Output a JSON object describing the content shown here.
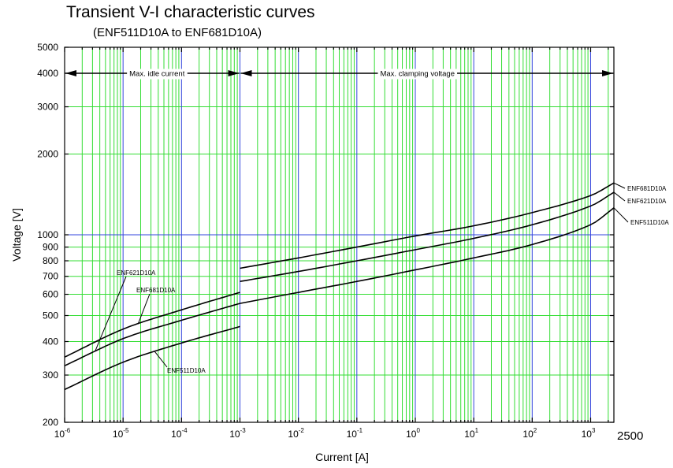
{
  "chart_data": {
    "type": "line",
    "title": "Transient V-I characteristic curves",
    "subtitle": "(ENF511D10A to ENF681D10A)",
    "xlabel": "Current [A]",
    "ylabel": "Voltage [V]",
    "x_scale": "log",
    "y_scale": "log",
    "xlim": [
      1e-06,
      2500
    ],
    "ylim": [
      200,
      5000
    ],
    "grid": true,
    "x_ticks": [
      {
        "value": 1e-06,
        "base": "10",
        "exp": "-6"
      },
      {
        "value": 1e-05,
        "base": "10",
        "exp": "-5"
      },
      {
        "value": 0.0001,
        "base": "10",
        "exp": "-4"
      },
      {
        "value": 0.001,
        "base": "10",
        "exp": "-3"
      },
      {
        "value": 0.01,
        "base": "10",
        "exp": "-2"
      },
      {
        "value": 0.1,
        "base": "10",
        "exp": "-1"
      },
      {
        "value": 1,
        "base": "10",
        "exp": "0"
      },
      {
        "value": 10,
        "base": "10",
        "exp": "1"
      },
      {
        "value": 100,
        "base": "10",
        "exp": "2"
      },
      {
        "value": 1000,
        "base": "10",
        "exp": "3"
      }
    ],
    "x_extra_tick": {
      "value": 2500,
      "label": "2500"
    },
    "y_ticks": [
      200,
      300,
      400,
      500,
      600,
      700,
      800,
      900,
      1000,
      2000,
      3000,
      4000,
      5000
    ],
    "annotations": [
      {
        "text": "Max. idle current",
        "x_from": 1e-06,
        "x_to": 0.001
      },
      {
        "text": "Max. clamping voltage",
        "x_from": 0.001,
        "x_to": 2500
      }
    ],
    "series": [
      {
        "name": "ENF681D10A",
        "idle": [
          [
            1e-06,
            350
          ],
          [
            1e-05,
            445
          ],
          [
            0.0001,
            525
          ],
          [
            0.001,
            610
          ]
        ],
        "clamp": [
          [
            0.001,
            750
          ],
          [
            0.01,
            820
          ],
          [
            0.1,
            900
          ],
          [
            1,
            990
          ],
          [
            10,
            1080
          ],
          [
            100,
            1210
          ],
          [
            1000,
            1400
          ],
          [
            2500,
            1560
          ]
        ]
      },
      {
        "name": "ENF621D10A",
        "idle": [
          [
            1e-06,
            325
          ],
          [
            1e-05,
            410
          ],
          [
            0.0001,
            480
          ],
          [
            0.001,
            555
          ]
        ],
        "clamp": [
          [
            0.001,
            670
          ],
          [
            0.01,
            730
          ],
          [
            0.1,
            800
          ],
          [
            1,
            880
          ],
          [
            10,
            970
          ],
          [
            100,
            1090
          ],
          [
            1000,
            1280
          ],
          [
            2500,
            1440
          ]
        ]
      },
      {
        "name": "ENF511D10A",
        "idle": [
          [
            1e-06,
            265
          ],
          [
            1e-05,
            335
          ],
          [
            0.0001,
            395
          ],
          [
            0.001,
            455
          ]
        ],
        "clamp": [
          [
            0.001,
            555
          ],
          [
            0.01,
            610
          ],
          [
            0.1,
            670
          ],
          [
            1,
            740
          ],
          [
            10,
            820
          ],
          [
            100,
            920
          ],
          [
            1000,
            1090
          ],
          [
            2500,
            1260
          ]
        ]
      }
    ]
  }
}
